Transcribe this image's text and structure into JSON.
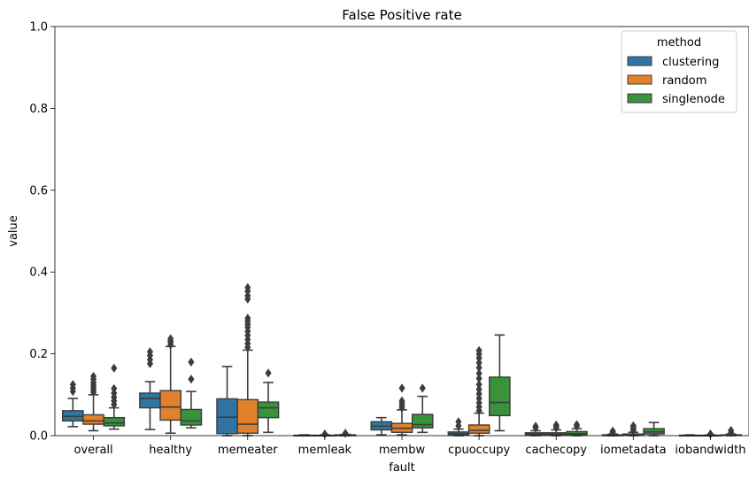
{
  "chart_data": {
    "type": "box",
    "title": "False Positive rate",
    "xlabel": "fault",
    "ylabel": "value",
    "ylim": [
      0,
      1.0
    ],
    "yticks": [
      0.0,
      0.2,
      0.4,
      0.6,
      0.8,
      1.0
    ],
    "ytick_labels": [
      "0.0",
      "0.2",
      "0.4",
      "0.6",
      "0.8",
      "1.0"
    ],
    "categories": [
      "overall",
      "healthy",
      "memeater",
      "memleak",
      "membw",
      "cpuoccupy",
      "cachecopy",
      "iometadata",
      "iobandwidth"
    ],
    "legend": {
      "title": "method",
      "position": "top-right",
      "entries": [
        "clustering",
        "random",
        "singlenode"
      ]
    },
    "series": [
      {
        "name": "clustering",
        "color": "#3274a1",
        "boxes": [
          {
            "whislo": 0.022,
            "q1": 0.036,
            "med": 0.047,
            "q3": 0.061,
            "whishi": 0.091,
            "fliers": [
              0.108,
              0.116,
              0.125
            ]
          },
          {
            "whislo": 0.015,
            "q1": 0.068,
            "med": 0.091,
            "q3": 0.104,
            "whishi": 0.132,
            "fliers": [
              0.176,
              0.186,
              0.196,
              0.205
            ]
          },
          {
            "whislo": 0.0,
            "q1": 0.005,
            "med": 0.045,
            "q3": 0.09,
            "whishi": 0.169,
            "fliers": []
          },
          {
            "whislo": 0.0,
            "q1": 0.0,
            "med": 0.0,
            "q3": 0.001,
            "whishi": 0.002,
            "fliers": []
          },
          {
            "whislo": 0.002,
            "q1": 0.014,
            "med": 0.023,
            "q3": 0.034,
            "whishi": 0.044,
            "fliers": []
          },
          {
            "whislo": 0.0,
            "q1": 0.002,
            "med": 0.005,
            "q3": 0.009,
            "whishi": 0.016,
            "fliers": [
              0.024,
              0.034
            ]
          },
          {
            "whislo": 0.0,
            "q1": 0.002,
            "med": 0.004,
            "q3": 0.007,
            "whishi": 0.012,
            "fliers": [
              0.019,
              0.023
            ]
          },
          {
            "whislo": 0.0,
            "q1": 0.0,
            "med": 0.001,
            "q3": 0.002,
            "whishi": 0.004,
            "fliers": [
              0.008,
              0.011
            ]
          },
          {
            "whislo": 0.0,
            "q1": 0.0,
            "med": 0.0,
            "q3": 0.001,
            "whishi": 0.002,
            "fliers": []
          }
        ]
      },
      {
        "name": "random",
        "color": "#e1812c",
        "boxes": [
          {
            "whislo": 0.012,
            "q1": 0.028,
            "med": 0.036,
            "q3": 0.051,
            "whishi": 0.1,
            "fliers": [
              0.106,
              0.112,
              0.118,
              0.124,
              0.13,
              0.138,
              0.145
            ]
          },
          {
            "whislo": 0.006,
            "q1": 0.038,
            "med": 0.07,
            "q3": 0.11,
            "whishi": 0.218,
            "fliers": [
              0.222,
              0.228,
              0.232,
              0.237
            ]
          },
          {
            "whislo": 0.0,
            "q1": 0.006,
            "med": 0.028,
            "q3": 0.088,
            "whishi": 0.209,
            "fliers": [
              0.216,
              0.225,
              0.235,
              0.245,
              0.255,
              0.265,
              0.272,
              0.28,
              0.287,
              0.334,
              0.342,
              0.353,
              0.362
            ]
          },
          {
            "whislo": 0.0,
            "q1": 0.0,
            "med": 0.0,
            "q3": 0.001,
            "whishi": 0.002,
            "fliers": [
              0.004
            ]
          },
          {
            "whislo": 0.002,
            "q1": 0.008,
            "med": 0.018,
            "q3": 0.03,
            "whishi": 0.063,
            "fliers": [
              0.068,
              0.073,
              0.079,
              0.085,
              0.116
            ]
          },
          {
            "whislo": 0.0,
            "q1": 0.006,
            "med": 0.013,
            "q3": 0.026,
            "whishi": 0.055,
            "fliers": [
              0.061,
              0.07,
              0.08,
              0.091,
              0.102,
              0.113,
              0.125,
              0.14,
              0.152,
              0.166,
              0.178,
              0.19,
              0.199,
              0.208
            ]
          },
          {
            "whislo": 0.0,
            "q1": 0.002,
            "med": 0.004,
            "q3": 0.007,
            "whishi": 0.014,
            "fliers": [
              0.019,
              0.023,
              0.026
            ]
          },
          {
            "whislo": 0.0,
            "q1": 0.001,
            "med": 0.002,
            "q3": 0.004,
            "whishi": 0.008,
            "fliers": [
              0.012,
              0.016,
              0.02,
              0.024
            ]
          },
          {
            "whislo": 0.0,
            "q1": 0.0,
            "med": 0.0,
            "q3": 0.001,
            "whishi": 0.002,
            "fliers": [
              0.004
            ]
          }
        ]
      },
      {
        "name": "singlenode",
        "color": "#3a923a",
        "boxes": [
          {
            "whislo": 0.016,
            "q1": 0.024,
            "med": 0.031,
            "q3": 0.044,
            "whishi": 0.068,
            "fliers": [
              0.076,
              0.085,
              0.094,
              0.104,
              0.115,
              0.165
            ]
          },
          {
            "whislo": 0.019,
            "q1": 0.026,
            "med": 0.036,
            "q3": 0.064,
            "whishi": 0.108,
            "fliers": [
              0.138,
              0.18
            ]
          },
          {
            "whislo": 0.008,
            "q1": 0.044,
            "med": 0.068,
            "q3": 0.082,
            "whishi": 0.13,
            "fliers": [
              0.153
            ]
          },
          {
            "whislo": 0.0,
            "q1": 0.0,
            "med": 0.001,
            "q3": 0.002,
            "whishi": 0.003,
            "fliers": [
              0.006
            ]
          },
          {
            "whislo": 0.008,
            "q1": 0.019,
            "med": 0.027,
            "q3": 0.052,
            "whishi": 0.096,
            "fliers": [
              0.116
            ]
          },
          {
            "whislo": 0.012,
            "q1": 0.049,
            "med": 0.081,
            "q3": 0.143,
            "whishi": 0.246,
            "fliers": []
          },
          {
            "whislo": 0.0,
            "q1": 0.002,
            "med": 0.005,
            "q3": 0.01,
            "whishi": 0.017,
            "fliers": [
              0.023,
              0.027
            ]
          },
          {
            "whislo": 0.0,
            "q1": 0.004,
            "med": 0.009,
            "q3": 0.017,
            "whishi": 0.032,
            "fliers": []
          },
          {
            "whislo": 0.0,
            "q1": 0.001,
            "med": 0.001,
            "q3": 0.002,
            "whishi": 0.004,
            "fliers": [
              0.008,
              0.013
            ]
          }
        ]
      }
    ]
  }
}
